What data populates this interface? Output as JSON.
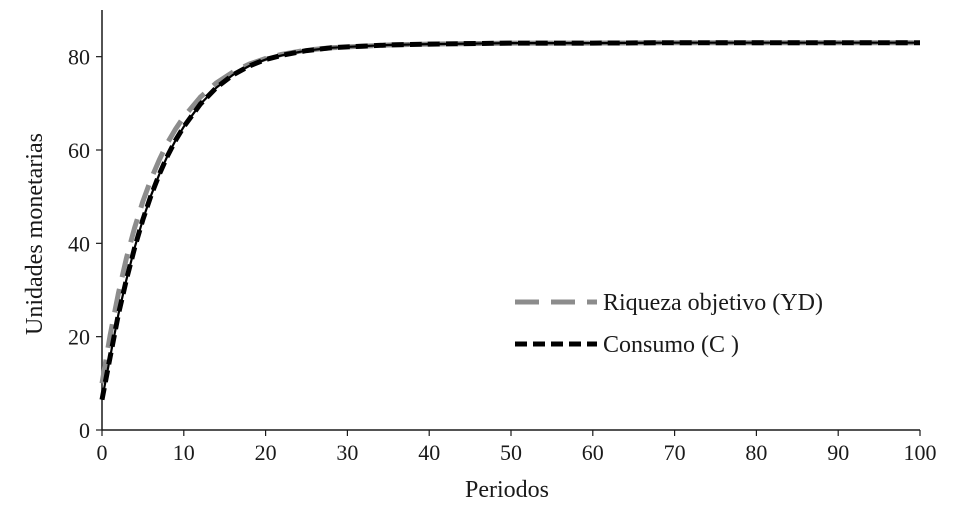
{
  "chart_data": {
    "type": "line",
    "xlabel": "Periodos",
    "ylabel": "Unidades monetarias",
    "xlim": [
      0,
      100
    ],
    "ylim": [
      0,
      90
    ],
    "xticks": [
      0,
      10,
      20,
      30,
      40,
      50,
      60,
      70,
      80,
      90,
      100
    ],
    "yticks": [
      0,
      20,
      40,
      60,
      80
    ],
    "grid": false,
    "legend_position": "center-right",
    "series": [
      {
        "name": "Riqueza objetivo (YD)",
        "color": "#8c8c8c",
        "style": "long-dash",
        "x": [
          0,
          1,
          2,
          3,
          4,
          5,
          6,
          7,
          8,
          9,
          10,
          12,
          14,
          16,
          18,
          20,
          22,
          25,
          28,
          30,
          35,
          40,
          50,
          60,
          70,
          80,
          90,
          100
        ],
        "values": [
          10,
          20.4,
          29.3,
          36.9,
          43.4,
          49.0,
          53.8,
          57.9,
          61.5,
          64.5,
          67.1,
          71.3,
          74.4,
          76.7,
          78.4,
          79.6,
          80.5,
          81.4,
          81.9,
          82.1,
          82.5,
          82.7,
          82.9,
          82.9,
          83.0,
          83.0,
          83.0,
          83.0
        ]
      },
      {
        "name": "Consumo (C )",
        "color": "#000000",
        "style": "short-dash",
        "x": [
          0,
          1,
          2,
          3,
          4,
          5,
          6,
          7,
          8,
          9,
          10,
          12,
          14,
          16,
          18,
          20,
          22,
          25,
          28,
          30,
          35,
          40,
          50,
          60,
          70,
          80,
          90,
          100
        ],
        "values": [
          6.5,
          15.7,
          24.8,
          32.3,
          39.1,
          45.1,
          50.3,
          54.8,
          58.7,
          62.1,
          65.0,
          69.8,
          73.4,
          76.1,
          78.0,
          79.4,
          80.3,
          81.3,
          81.9,
          82.1,
          82.5,
          82.7,
          82.9,
          82.9,
          83.0,
          83.0,
          83.0,
          83.0
        ]
      },
      {
        "name": "",
        "color": "#000000",
        "style": "solid",
        "x": [
          0,
          1,
          2,
          3,
          4,
          5,
          6,
          7,
          8,
          9,
          10,
          12,
          14,
          16,
          18,
          20,
          22,
          25,
          28,
          30,
          35,
          40,
          50,
          60,
          70,
          80,
          90,
          100
        ],
        "values": [
          6.5,
          15.7,
          24.8,
          32.3,
          39.1,
          45.1,
          50.3,
          54.8,
          58.7,
          62.1,
          65.0,
          69.8,
          73.4,
          76.1,
          78.0,
          79.4,
          80.3,
          81.3,
          81.9,
          82.1,
          82.5,
          82.7,
          82.9,
          82.9,
          83.0,
          83.0,
          83.0,
          83.0
        ]
      }
    ]
  }
}
